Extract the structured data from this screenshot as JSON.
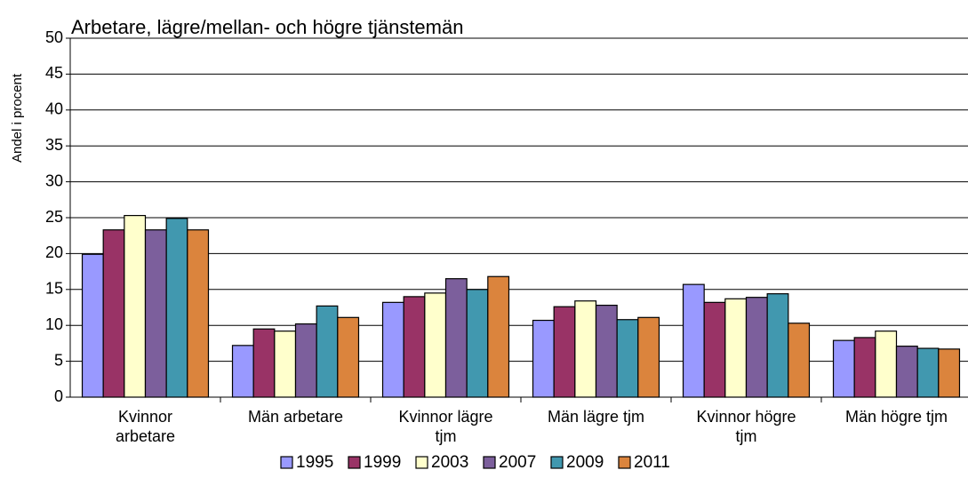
{
  "chart_data": {
    "type": "bar",
    "title": "Arbetare, lägre/mellan- och högre tjänstemän",
    "y_label": "Andel i procent",
    "categories": [
      "Kvinnor arbetare",
      "Män arbetare",
      "Kvinnor lägre tjm",
      "Män lägre tjm",
      "Kvinnor högre tjm",
      "Män högre tjm"
    ],
    "series": [
      {
        "name": "1995",
        "color": "#9999ff",
        "values": [
          19.9,
          7.2,
          13.2,
          10.7,
          15.7,
          7.9
        ]
      },
      {
        "name": "1999",
        "color": "#993366",
        "values": [
          23.3,
          9.5,
          14.0,
          12.6,
          13.2,
          8.3
        ]
      },
      {
        "name": "2003",
        "color": "#ffffcc",
        "values": [
          25.3,
          9.2,
          14.5,
          13.4,
          13.7,
          9.2
        ]
      },
      {
        "name": "2007",
        "color": "#7c5f9c",
        "values": [
          23.3,
          10.2,
          16.5,
          12.8,
          13.9,
          7.1
        ]
      },
      {
        "name": "2009",
        "color": "#4198af",
        "values": [
          24.9,
          12.7,
          15.0,
          10.8,
          14.4,
          6.8
        ]
      },
      {
        "name": "2011",
        "color": "#db843d",
        "values": [
          23.3,
          11.1,
          16.8,
          11.1,
          10.3,
          6.7
        ]
      }
    ],
    "ylim": [
      0,
      50
    ],
    "yticks": [
      0,
      5,
      10,
      15,
      20,
      25,
      30,
      35,
      40,
      45,
      50
    ],
    "grid": true,
    "legend": "bottom"
  }
}
